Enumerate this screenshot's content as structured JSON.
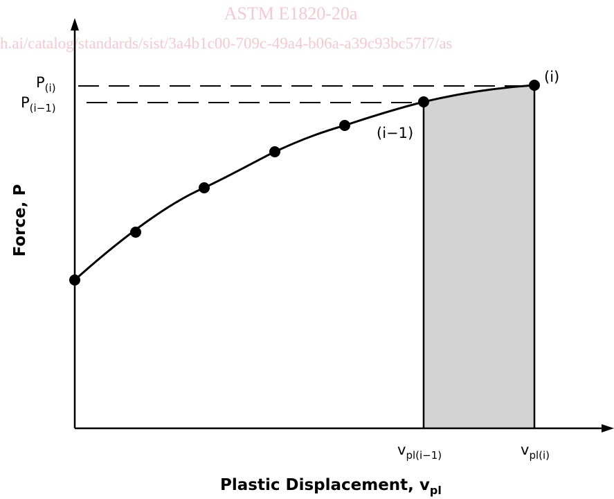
{
  "watermark": {
    "title": "ASTM E1820-20a",
    "url": "h.ai/catalog/standards/sist/3a4b1c00-709c-49a4-b06a-a39c93bc57f7/as"
  },
  "diagram": {
    "y_axis_title": "Force, P",
    "x_axis_title_main": "Plastic Displacement, v",
    "x_axis_title_sub": "pl",
    "labels": {
      "p_i_main": "P",
      "p_i_sub": "(i)",
      "p_im1_main": "P",
      "p_im1_sub": "(i−1)",
      "v_im1_main": "v",
      "v_im1_sub": "pl(i−1)",
      "v_i_main": "v",
      "v_i_sub": "pl(i)",
      "point_i": "(i)",
      "point_im1": "(i−1)"
    },
    "colors": {
      "shaded_area": "#d3d3d3",
      "watermark": "#f7c9cf",
      "ink": "#000000"
    }
  }
}
